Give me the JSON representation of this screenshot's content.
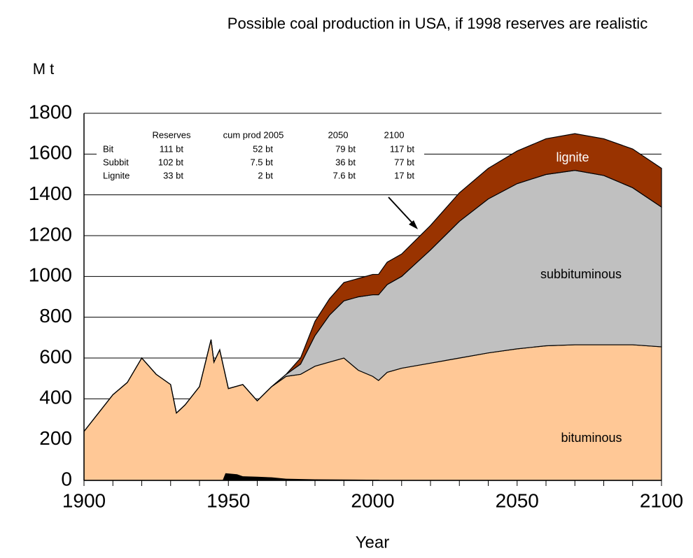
{
  "chart_data": {
    "type": "stacked_area",
    "title": "Possible coal production in USA, if 1998 reserves are realistic",
    "y_label": "M t",
    "x_label": "Year",
    "x": [
      1900,
      1905,
      1910,
      1915,
      1920,
      1925,
      1930,
      1932,
      1935,
      1940,
      1944,
      1945,
      1947,
      1950,
      1955,
      1960,
      1965,
      1970,
      1975,
      1980,
      1985,
      1990,
      1995,
      2000,
      2002,
      2005,
      2010,
      2020,
      2030,
      2040,
      2050,
      2060,
      2070,
      2080,
      2090,
      2100
    ],
    "series": [
      {
        "name": "bituminous",
        "color": "#ffc896",
        "values": [
          240,
          330,
          420,
          480,
          600,
          520,
          470,
          330,
          370,
          460,
          690,
          580,
          640,
          450,
          470,
          390,
          460,
          510,
          520,
          560,
          580,
          600,
          540,
          510,
          490,
          530,
          550,
          575,
          600,
          625,
          645,
          660,
          665,
          665,
          665,
          655
        ]
      },
      {
        "name": "subbituminous",
        "color": "#c0c0c0",
        "values": [
          0,
          0,
          0,
          0,
          0,
          0,
          0,
          0,
          0,
          0,
          0,
          0,
          0,
          0,
          0,
          0,
          0,
          10,
          50,
          150,
          230,
          280,
          360,
          400,
          420,
          430,
          450,
          555,
          670,
          755,
          810,
          840,
          855,
          830,
          770,
          685
        ]
      },
      {
        "name": "lignite",
        "color": "#993300",
        "values": [
          0,
          0,
          0,
          0,
          0,
          0,
          0,
          0,
          0,
          0,
          0,
          0,
          0,
          0,
          0,
          0,
          0,
          0,
          30,
          70,
          80,
          90,
          90,
          100,
          100,
          110,
          110,
          120,
          140,
          150,
          160,
          175,
          180,
          180,
          190,
          190
        ]
      }
    ],
    "overlay": {
      "color": "#000000",
      "x": [
        1948,
        1949,
        1953,
        1955,
        1960,
        1965,
        1970,
        1980,
        2002,
        2003
      ],
      "values": [
        0,
        35,
        30,
        20,
        18,
        15,
        8,
        5,
        3,
        0
      ]
    },
    "xlim": [
      1900,
      2100
    ],
    "xticks": [
      1900,
      1950,
      2000,
      2050,
      2100
    ],
    "xticks_minor": [
      1910,
      1920,
      1930,
      1940,
      1960,
      1970,
      1980,
      1990,
      2010,
      2020,
      2030,
      2040,
      2060,
      2070,
      2080,
      2090
    ],
    "ylim": [
      0,
      1800
    ],
    "yticks": [
      0,
      200,
      400,
      600,
      800,
      1000,
      1200,
      1400,
      1600,
      1800
    ],
    "grid": true,
    "table": {
      "columns": [
        "",
        "Reserves",
        "cum prod 2005",
        "2050",
        "2100"
      ],
      "rows": [
        [
          "Bit",
          "111 bt",
          "52 bt",
          "79 bt",
          "117 bt"
        ],
        [
          "Subbit",
          "102 bt",
          "7.5 bt",
          "36 bt",
          "77 bt"
        ],
        [
          "Lignite",
          "33 bt",
          "2 bt",
          "7.6 bt",
          "17 bt"
        ]
      ]
    }
  }
}
